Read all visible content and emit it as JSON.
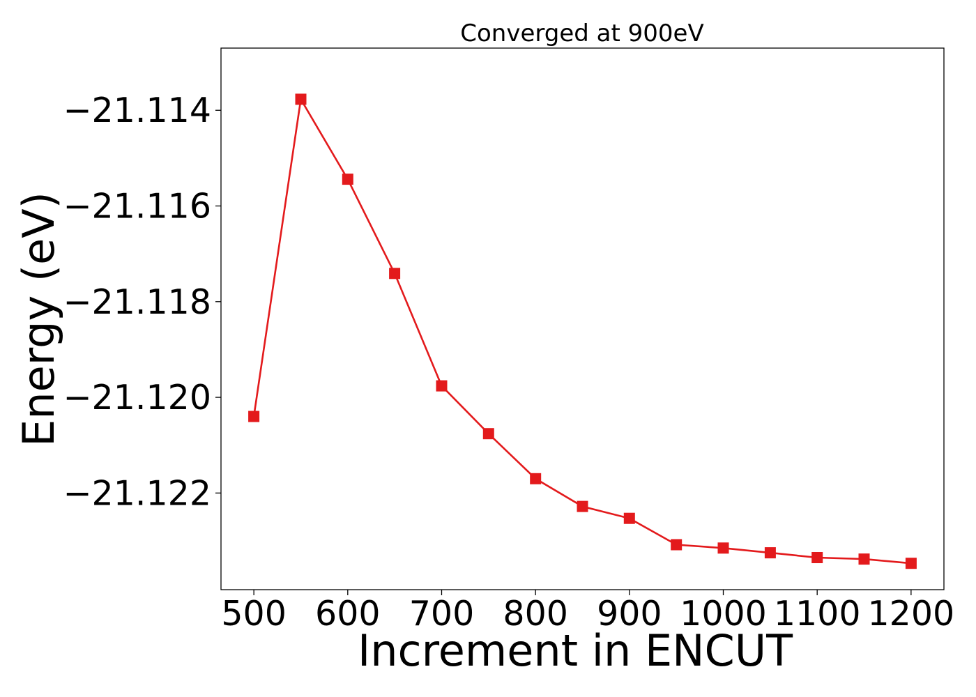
{
  "chart_data": {
    "type": "line",
    "title": "Converged at 900eV",
    "xlabel": "Increment in ENCUT",
    "ylabel": "Energy (eV)",
    "x_ticks": [
      500,
      600,
      700,
      800,
      900,
      1000,
      1100,
      1200
    ],
    "x_tick_labels": [
      "500",
      "600",
      "700",
      "800",
      "900",
      "1000",
      "1100",
      "1200"
    ],
    "y_ticks": [
      -21.114,
      -21.116,
      -21.118,
      -21.12,
      -21.122
    ],
    "y_tick_labels": [
      "−21.114",
      "−21.116",
      "−21.118",
      "−21.120",
      "−21.122"
    ],
    "xlim": [
      465,
      1235
    ],
    "ylim": [
      -21.12402,
      -21.1127
    ],
    "grid": false,
    "legend": false,
    "marker": "square",
    "series": [
      {
        "color": "#e31a1c",
        "x": [
          500,
          550,
          600,
          650,
          700,
          750,
          800,
          850,
          900,
          950,
          1000,
          1050,
          1100,
          1150,
          1200
        ],
        "y": [
          -21.1204,
          -21.11377,
          -21.11544,
          -21.11741,
          -21.11976,
          -21.12076,
          -21.1217,
          -21.12228,
          -21.12253,
          -21.12308,
          -21.12315,
          -21.12325,
          -21.12335,
          -21.12338,
          -21.12347
        ]
      }
    ]
  }
}
